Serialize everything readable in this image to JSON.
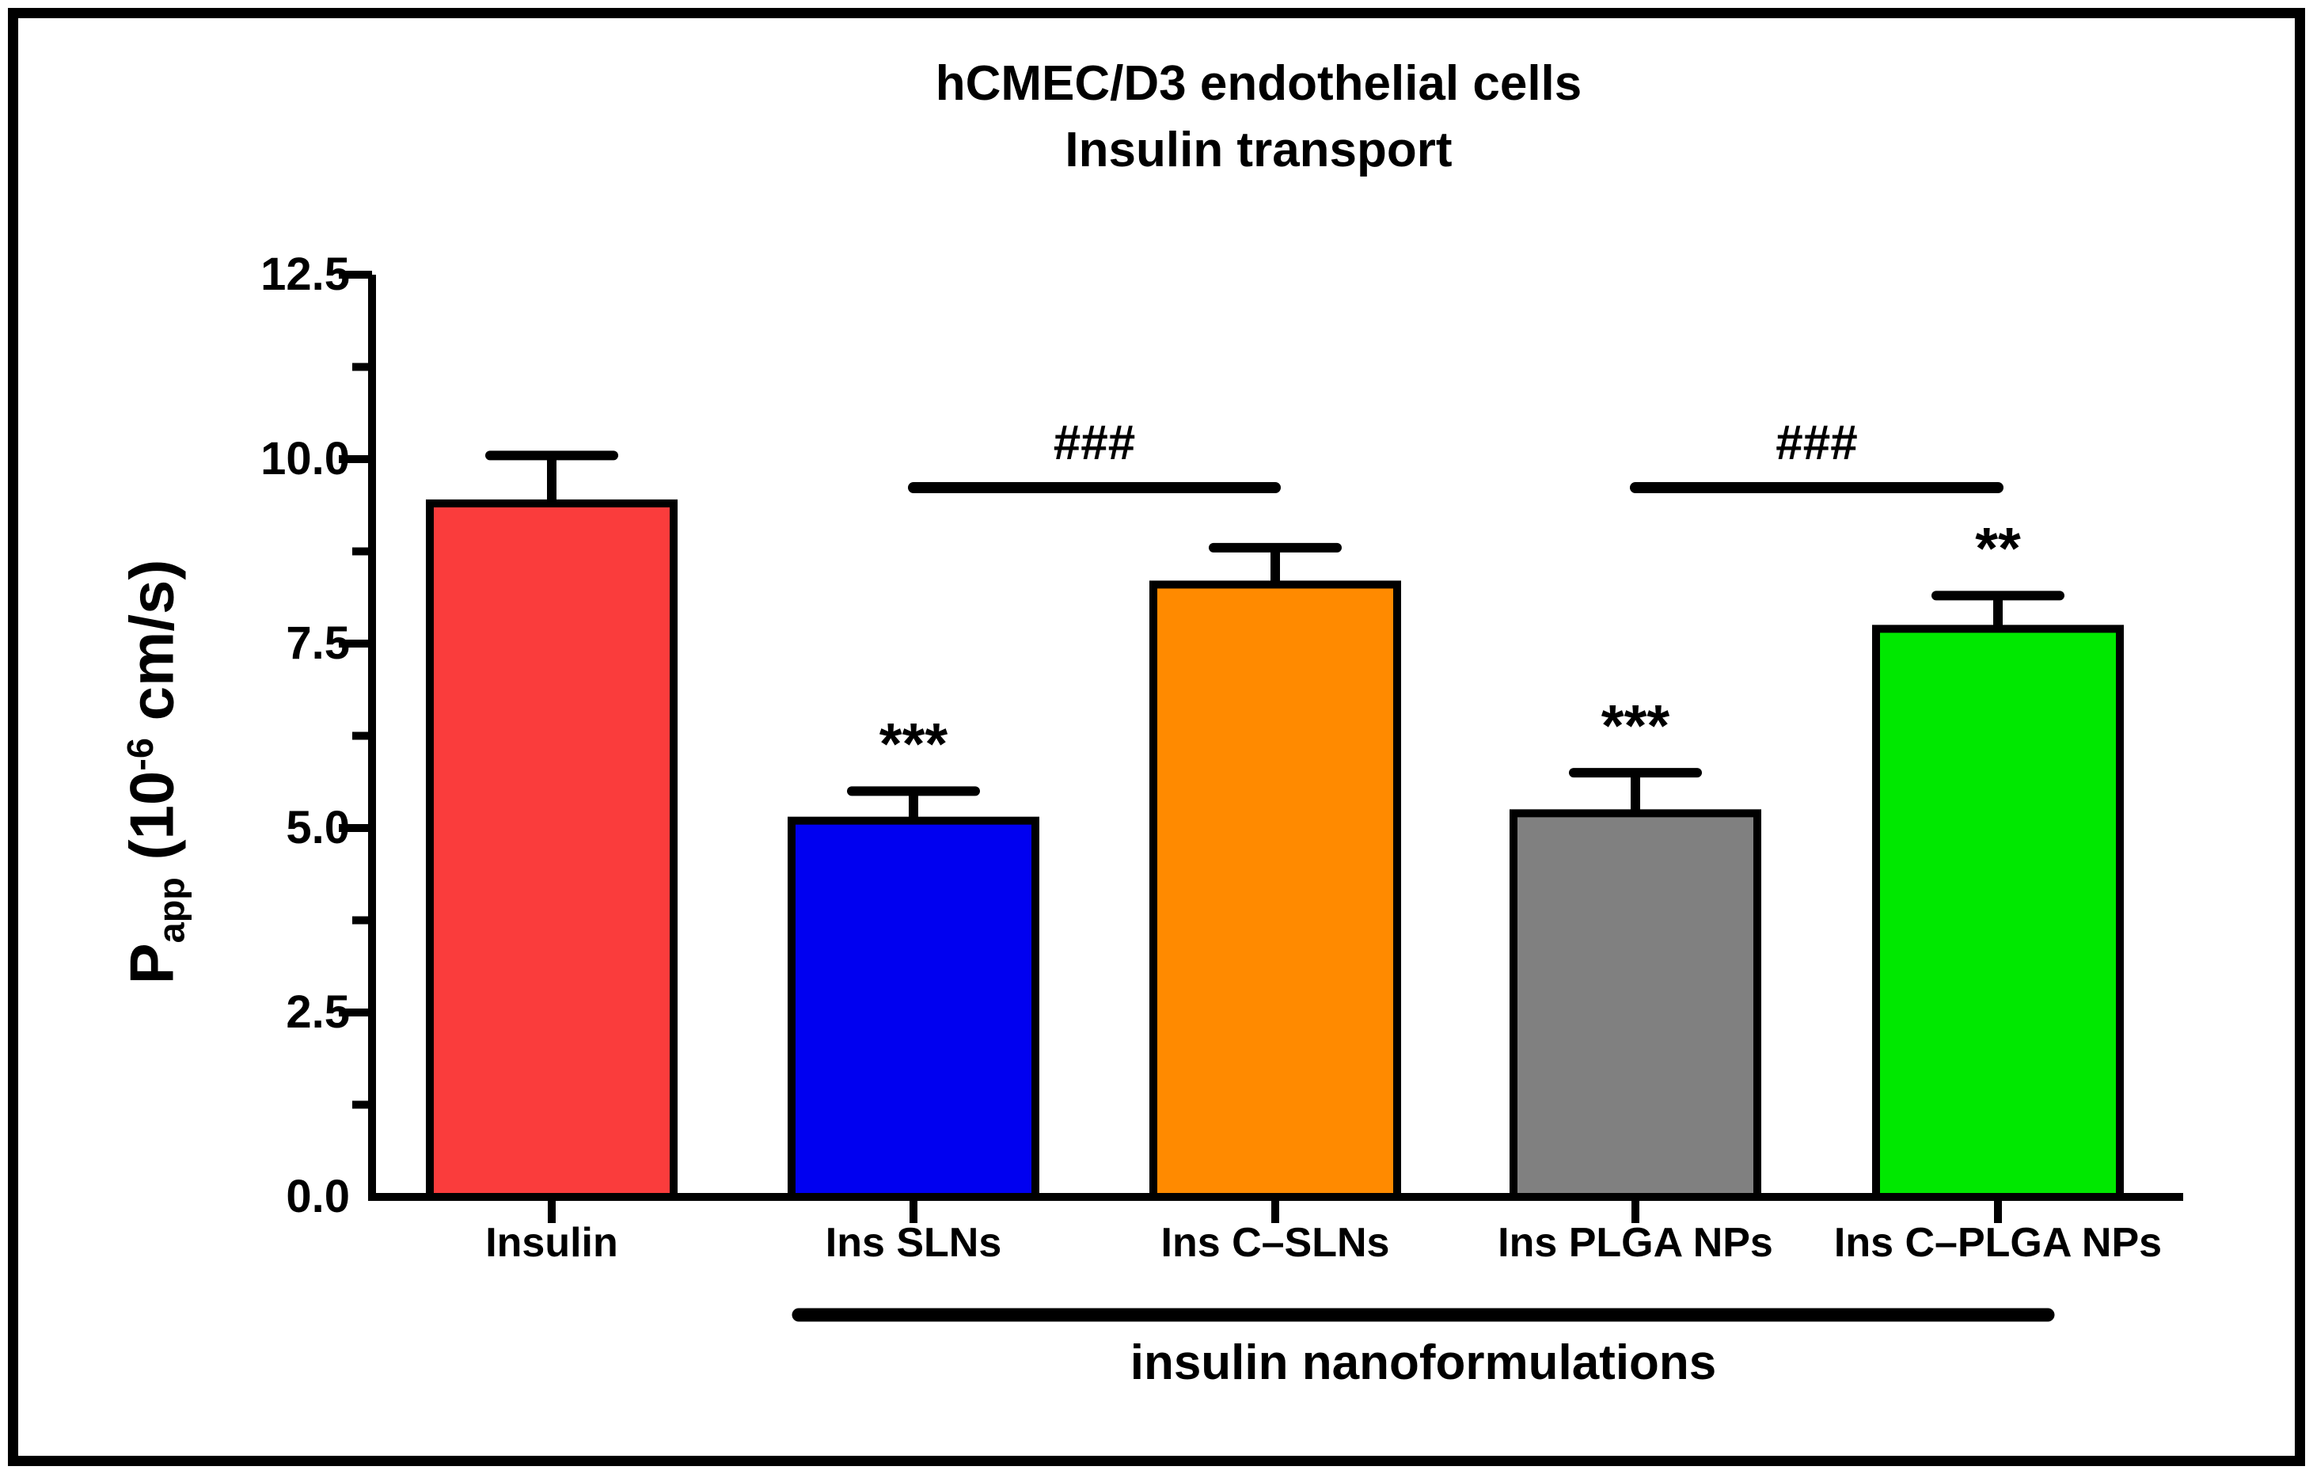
{
  "figure": {
    "title_line1": "hCMEC/D3 endothelial cells",
    "title_line2": "Insulin transport"
  },
  "y_axis": {
    "label_p": "P",
    "label_sub": "app",
    "label_mid": " (10",
    "label_sup": "-6",
    "label_end": " cm/s)",
    "ticks": [
      "12.5",
      "10.0",
      "7.5",
      "5.0",
      "2.5",
      "0.0"
    ]
  },
  "chart_data": {
    "type": "bar",
    "title": "hCMEC/D3 endothelial cells",
    "subtitle": "Insulin transport",
    "xlabel": "",
    "ylabel": "Papp (10-6 cm/s)",
    "ylim": [
      0,
      12.5
    ],
    "ytick_step": 2.5,
    "grid": false,
    "legend": "none",
    "categories": [
      "Insulin",
      "Ins SLNs",
      "Ins C–SLNs",
      "Ins PLGA NPs",
      "Ins C–PLGA NPs"
    ],
    "values": [
      9.4,
      5.1,
      8.3,
      5.2,
      7.7
    ],
    "errors": [
      0.65,
      0.4,
      0.5,
      0.55,
      0.45
    ],
    "bar_colors": [
      "#FA3C3C",
      "#0000F0",
      "#FF8A00",
      "#808080",
      "#00E800"
    ],
    "significance": [
      {
        "bar_index": 1,
        "label": "***"
      },
      {
        "bar_index": 3,
        "label": "***"
      },
      {
        "bar_index": 4,
        "label": "**"
      }
    ],
    "comparisons": [
      {
        "from_index": 1,
        "to_index": 2,
        "label": "###"
      },
      {
        "from_index": 3,
        "to_index": 4,
        "label": "###"
      }
    ],
    "group_annotation": {
      "label": "insulin nanoformulations",
      "from_index": 1,
      "to_index": 4
    }
  }
}
